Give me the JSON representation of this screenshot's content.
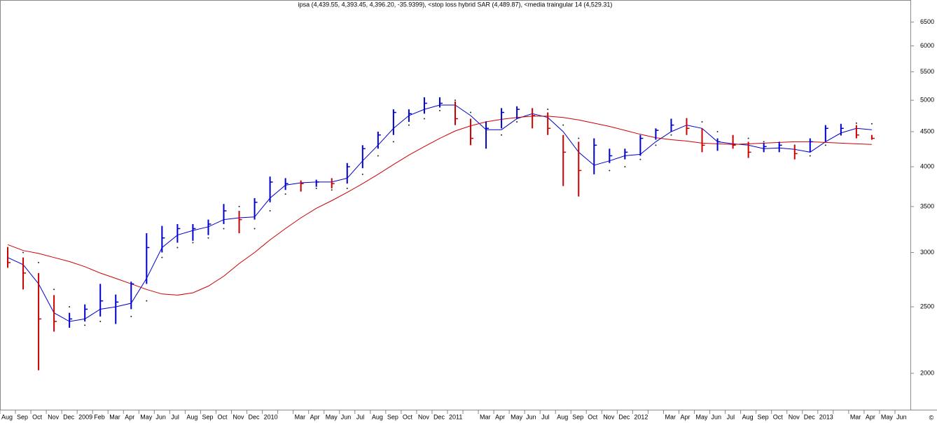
{
  "chart_data": {
    "type": "ohlc",
    "title": "ipsa (4,439.55, 4,393.45, 4,396.20, -35.9399), <stop loss hybrid SAR (4,489.87), <media traingular 14 (4,529.31)",
    "copyright": "©",
    "categories": [
      "Aug",
      "Sep",
      "Oct",
      "Nov",
      "Dec",
      "2009",
      "Feb",
      "Mar",
      "Apr",
      "May",
      "Jun",
      "Jul",
      "Aug",
      "Sep",
      "Oct",
      "Nov",
      "Dec",
      "2010",
      null,
      "Mar",
      "Apr",
      "May",
      "Jun",
      "Jul",
      "Aug",
      "Sep",
      "Oct",
      "Nov",
      "Dec",
      "2011",
      null,
      "Mar",
      "Apr",
      "May",
      "Jun",
      "Jul",
      "Aug",
      "Sep",
      "Oct",
      "Nov",
      "Dec",
      "2012",
      null,
      "Mar",
      "Apr",
      "May",
      "Jun",
      "Jul",
      "Aug",
      "Sep",
      "Oct",
      "Nov",
      "Dec",
      "2013",
      null,
      "Mar",
      "Apr",
      "May",
      "Jun"
    ],
    "high": [
      3050,
      2950,
      2800,
      2600,
      2450,
      2520,
      2700,
      2600,
      2720,
      3200,
      3280,
      3300,
      3300,
      3350,
      3530,
      3450,
      3600,
      3870,
      3850,
      3820,
      3830,
      3850,
      4050,
      4300,
      4500,
      4850,
      4850,
      5050,
      5050,
      4980,
      4700,
      4650,
      4870,
      4900,
      4870,
      4800,
      4450,
      4350,
      4400,
      4250,
      4250,
      4450,
      4550,
      4700,
      4700,
      4550,
      4400,
      4450,
      4350,
      4330,
      4350,
      4300,
      4400,
      4600,
      4620,
      4600,
      4450,
      null,
      null
    ],
    "low": [
      2850,
      2650,
      2020,
      2300,
      2330,
      2380,
      2420,
      2360,
      2480,
      2700,
      3000,
      3100,
      3120,
      3180,
      3300,
      3200,
      3350,
      3550,
      3700,
      3680,
      3740,
      3720,
      3780,
      3980,
      4250,
      4450,
      4650,
      4780,
      4880,
      4600,
      4300,
      4250,
      4550,
      4700,
      4550,
      4450,
      3750,
      3620,
      3900,
      4050,
      4100,
      4150,
      4380,
      4500,
      4450,
      4200,
      4220,
      4250,
      4120,
      4200,
      4200,
      4100,
      4200,
      4350,
      4450,
      4400,
      4380,
      null,
      null
    ],
    "close": [
      2900,
      2800,
      2400,
      2380,
      2400,
      2480,
      2550,
      2540,
      2700,
      3050,
      3150,
      3250,
      3250,
      3300,
      3450,
      3350,
      3550,
      3800,
      3780,
      3780,
      3800,
      3780,
      4000,
      4250,
      4450,
      4800,
      4780,
      4950,
      4950,
      4700,
      4400,
      4550,
      4800,
      4850,
      4750,
      4550,
      4200,
      3950,
      4300,
      4150,
      4200,
      4400,
      4520,
      4600,
      4550,
      4300,
      4350,
      4300,
      4200,
      4280,
      4300,
      4180,
      4350,
      4550,
      4550,
      4450,
      4400,
      null,
      null
    ],
    "up_color": "#0000cc",
    "down_color": "#cc0000",
    "lines": [
      {
        "color": "#0000cc",
        "values": [
          2950,
          2880,
          2700,
          2450,
          2380,
          2400,
          2480,
          2500,
          2530,
          2750,
          3050,
          3180,
          3230,
          3270,
          3350,
          3370,
          3380,
          3600,
          3760,
          3790,
          3800,
          3800,
          3850,
          4080,
          4300,
          4550,
          4750,
          4850,
          4920,
          4920,
          4750,
          4530,
          4530,
          4700,
          4780,
          4720,
          4500,
          4200,
          4020,
          4080,
          4150,
          4170,
          4350,
          4500,
          4600,
          4550,
          4350,
          4320,
          4300,
          4250,
          4260,
          4240,
          4200,
          4350,
          4480,
          4550,
          4530,
          null,
          null
        ]
      },
      {
        "color": "#cc0000",
        "values": [
          3080,
          3020,
          2990,
          2950,
          2910,
          2860,
          2800,
          2750,
          2700,
          2650,
          2610,
          2600,
          2620,
          2680,
          2770,
          2890,
          3000,
          3130,
          3250,
          3370,
          3480,
          3570,
          3670,
          3780,
          3900,
          4030,
          4160,
          4280,
          4400,
          4510,
          4590,
          4650,
          4690,
          4720,
          4740,
          4740,
          4720,
          4680,
          4630,
          4580,
          4520,
          4460,
          4410,
          4380,
          4360,
          4330,
          4320,
          4310,
          4320,
          4330,
          4340,
          4350,
          4350,
          4340,
          4330,
          4320,
          4310,
          null,
          null
        ]
      }
    ],
    "sar": {
      "color": "#222222",
      "values": [
        3050,
        3000,
        2900,
        2650,
        2500,
        2350,
        2380,
        2600,
        2420,
        2550,
        2950,
        3050,
        3100,
        3150,
        3250,
        3500,
        3250,
        3450,
        3650,
        3700,
        3720,
        3700,
        3720,
        3900,
        4150,
        4350,
        4600,
        4700,
        4830,
        5000,
        4800,
        4650,
        4450,
        4650,
        4850,
        4850,
        4600,
        4400,
        4200,
        3950,
        4000,
        4100,
        4300,
        4450,
        4700,
        4650,
        4500,
        4420,
        4400,
        4350,
        4300,
        4300,
        4150,
        4300,
        4450,
        4630,
        4620,
        null,
        null
      ]
    },
    "log_scale": true,
    "ylim": [
      1770,
      7000
    ],
    "yticks": [
      2000,
      2500,
      3000,
      3500,
      4000,
      4500,
      5000,
      5500,
      6000,
      6500
    ]
  }
}
